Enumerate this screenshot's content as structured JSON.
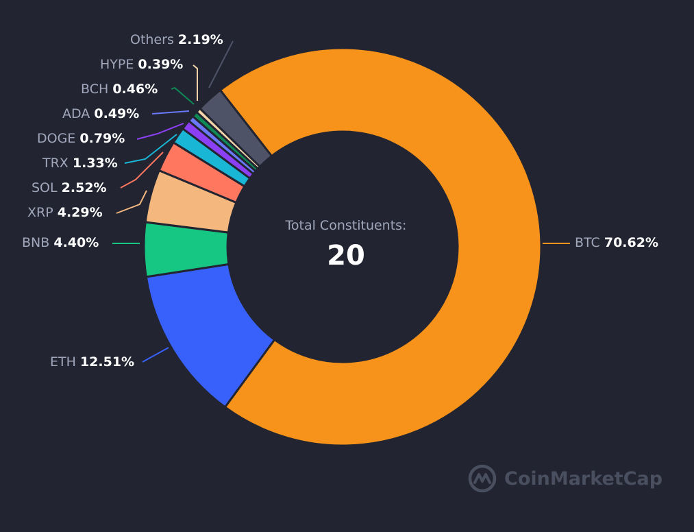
{
  "center": {
    "title": "Total Constituents:",
    "value": "20"
  },
  "brand": {
    "name": "CoinMarketCap"
  },
  "chart_data": {
    "type": "pie",
    "subtype": "donut",
    "title": "",
    "center_label": "Total Constituents: 20",
    "categories": [
      "BTC",
      "ETH",
      "BNB",
      "XRP",
      "SOL",
      "TRX",
      "DOGE",
      "ADA",
      "BCH",
      "HYPE",
      "Others"
    ],
    "values": [
      70.62,
      12.51,
      4.4,
      4.29,
      2.52,
      1.33,
      0.79,
      0.49,
      0.46,
      0.39,
      2.19
    ],
    "colors": [
      "#f7931a",
      "#3861fb",
      "#16c784",
      "#f4b87f",
      "#ff775f",
      "#1ab6d6",
      "#8c40f5",
      "#6979f8",
      "#0e8a56",
      "#f4d5a9",
      "#4e5368"
    ],
    "unit": "%",
    "legend": "none (inline leader-line labels)"
  },
  "labels": [
    {
      "name": "BTC",
      "pct": "70.62%"
    },
    {
      "name": "ETH",
      "pct": "12.51%"
    },
    {
      "name": "BNB",
      "pct": "4.40%"
    },
    {
      "name": "XRP",
      "pct": "4.29%"
    },
    {
      "name": "SOL",
      "pct": "2.52%"
    },
    {
      "name": "TRX",
      "pct": "1.33%"
    },
    {
      "name": "DOGE",
      "pct": "0.79%"
    },
    {
      "name": "ADA",
      "pct": "0.49%"
    },
    {
      "name": "BCH",
      "pct": "0.46%"
    },
    {
      "name": "HYPE",
      "pct": "0.39%"
    },
    {
      "name": "Others",
      "pct": "2.19%"
    }
  ]
}
